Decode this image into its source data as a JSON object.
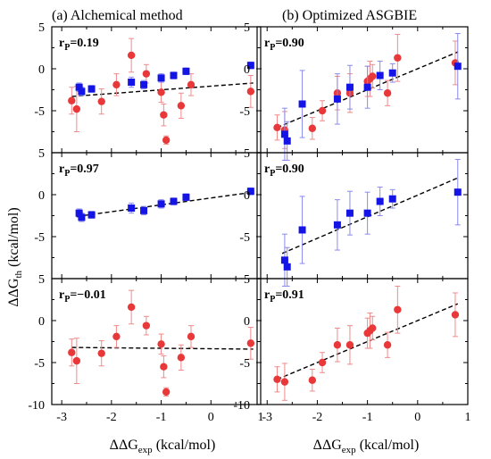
{
  "figure": {
    "col_titles": [
      "(a)   Alchemical method",
      "(b)   Optimized ASGBIE"
    ],
    "ylabel_main": "ΔΔG",
    "ylabel_sub": "th",
    "ylabel_unit": " (kcal/mol)",
    "xlabel_main": "ΔΔG",
    "xlabel_sub": "exp",
    "xlabel_unit": " (kcal/mol)"
  },
  "colors": {
    "blue": "#1414e6",
    "red": "#e8383a",
    "red_err": "#f08a8a",
    "blue_err": "#8a8aee"
  },
  "chart_data": [
    {
      "type": "scatter",
      "row": 0,
      "col": 0,
      "annotation": "r",
      "annotation_sub": "P",
      "annotation_value": "=0.19",
      "xlim": [
        -3.2,
        1.0
      ],
      "ylim": [
        -10,
        5
      ],
      "xticks": [
        "-3",
        "-2",
        "-1",
        "0",
        "1"
      ],
      "yticks": [
        "-10",
        "-5",
        "0",
        "5"
      ],
      "fit": {
        "x": [
          -2.8,
          0.85
        ],
        "y": [
          -3.3,
          -1.7
        ]
      },
      "series": [
        {
          "marker": "circle",
          "color": "red",
          "x": [
            -2.8,
            -2.7,
            -2.2,
            -1.9,
            -1.6,
            -1.3,
            -1.0,
            -0.95,
            -0.9,
            -0.6,
            -0.4,
            0.8
          ],
          "y": [
            -3.8,
            -4.8,
            -3.9,
            -1.9,
            1.6,
            -0.6,
            -2.8,
            -5.5,
            -8.5,
            -4.4,
            -1.9,
            -2.7
          ],
          "err": [
            1.6,
            2.7,
            1.5,
            1.3,
            2.0,
            1.1,
            1.2,
            1.3,
            0.5,
            1.5,
            1.3,
            1.9
          ]
        },
        {
          "marker": "square",
          "color": "blue",
          "x": [
            -2.65,
            -2.6,
            -2.4,
            -1.6,
            -1.35,
            -1.0,
            -0.75,
            -0.5,
            0.8
          ],
          "y": [
            -2.2,
            -2.7,
            -2.4,
            -1.6,
            -1.9,
            -1.1,
            -0.8,
            -0.3,
            0.4
          ],
          "err": [
            0.5,
            0.5,
            0.4,
            0.6,
            0.5,
            0.5,
            0.4,
            0.4,
            0.4
          ]
        }
      ]
    },
    {
      "type": "scatter",
      "row": 0,
      "col": 1,
      "annotation": "r",
      "annotation_sub": "P",
      "annotation_value": "=0.90",
      "xlim": [
        -3.2,
        1.0
      ],
      "ylim": [
        -10,
        5
      ],
      "xticks": [
        "-3",
        "-2",
        "-1",
        "0",
        "1"
      ],
      "yticks": [
        "-10",
        "-5",
        "0",
        "5"
      ],
      "fit": {
        "x": [
          -2.8,
          0.8
        ],
        "y": [
          -7.0,
          2.0
        ]
      },
      "series": [
        {
          "marker": "circle",
          "color": "red",
          "x": [
            -2.8,
            -2.65,
            -2.1,
            -1.9,
            -1.6,
            -1.35,
            -1.0,
            -0.95,
            -0.9,
            -0.6,
            -0.4,
            0.75
          ],
          "y": [
            -7.0,
            -7.3,
            -7.1,
            -5.0,
            -2.9,
            -2.9,
            -1.5,
            -1.2,
            -0.9,
            -2.9,
            1.3,
            0.7
          ],
          "err": [
            1.5,
            2.2,
            1.3,
            1.2,
            2.0,
            2.3,
            1.8,
            2.1,
            1.4,
            1.5,
            2.8,
            2.6
          ]
        },
        {
          "marker": "square",
          "color": "blue",
          "x": [
            -2.65,
            -2.6,
            -2.3,
            -1.6,
            -1.35,
            -1.0,
            -0.75,
            -0.5,
            0.8
          ],
          "y": [
            -7.8,
            -8.6,
            -4.2,
            -3.6,
            -2.2,
            -2.2,
            -0.8,
            -0.5,
            0.3
          ],
          "err": [
            3.1,
            2.3,
            4.0,
            3.0,
            2.6,
            2.5,
            1.7,
            1.1,
            3.9
          ]
        }
      ]
    },
    {
      "type": "scatter",
      "row": 1,
      "col": 0,
      "annotation": "r",
      "annotation_sub": "P",
      "annotation_value": "=0.97",
      "xlim": [
        -3.2,
        1.0
      ],
      "ylim": [
        -10,
        5
      ],
      "xticks": [
        "-3",
        "-2",
        "-1",
        "0",
        "1"
      ],
      "yticks": [
        "-10",
        "-5",
        "0",
        "5"
      ],
      "fit": {
        "x": [
          -2.7,
          0.85
        ],
        "y": [
          -2.6,
          0.3
        ]
      },
      "series": [
        {
          "marker": "square",
          "color": "blue",
          "x": [
            -2.65,
            -2.6,
            -2.4,
            -1.6,
            -1.35,
            -1.0,
            -0.75,
            -0.5,
            0.8
          ],
          "y": [
            -2.2,
            -2.7,
            -2.4,
            -1.6,
            -1.9,
            -1.1,
            -0.8,
            -0.3,
            0.4
          ],
          "err": [
            0.5,
            0.5,
            0.4,
            0.6,
            0.5,
            0.5,
            0.4,
            0.4,
            0.4
          ]
        }
      ]
    },
    {
      "type": "scatter",
      "row": 1,
      "col": 1,
      "annotation": "r",
      "annotation_sub": "P",
      "annotation_value": "=0.90",
      "xlim": [
        -3.2,
        1.0
      ],
      "ylim": [
        -10,
        5
      ],
      "xticks": [
        "-3",
        "-2",
        "-1",
        "0",
        "1"
      ],
      "yticks": [
        "-10",
        "-5",
        "0",
        "5"
      ],
      "fit": {
        "x": [
          -2.7,
          0.8
        ],
        "y": [
          -7.0,
          2.0
        ]
      },
      "series": [
        {
          "marker": "square",
          "color": "blue",
          "x": [
            -2.65,
            -2.6,
            -2.3,
            -1.6,
            -1.35,
            -1.0,
            -0.75,
            -0.5,
            0.8
          ],
          "y": [
            -7.8,
            -8.6,
            -4.2,
            -3.6,
            -2.2,
            -2.2,
            -0.8,
            -0.5,
            0.3
          ],
          "err": [
            3.1,
            2.3,
            4.0,
            3.0,
            2.6,
            2.5,
            1.7,
            1.1,
            3.9
          ]
        }
      ]
    },
    {
      "type": "scatter",
      "row": 2,
      "col": 0,
      "annotation": "r",
      "annotation_sub": "P",
      "annotation_value": "=−0.01",
      "xlim": [
        -3.2,
        1.0
      ],
      "ylim": [
        -10,
        5
      ],
      "xticks": [
        "-3",
        "-2",
        "-1",
        "0",
        "1"
      ],
      "yticks": [
        "-10",
        "-5",
        "0",
        "5"
      ],
      "fit": {
        "x": [
          -2.8,
          0.85
        ],
        "y": [
          -3.2,
          -3.4
        ]
      },
      "series": [
        {
          "marker": "circle",
          "color": "red",
          "x": [
            -2.8,
            -2.7,
            -2.2,
            -1.9,
            -1.6,
            -1.3,
            -1.0,
            -0.95,
            -0.9,
            -0.6,
            -0.4,
            0.8
          ],
          "y": [
            -3.8,
            -4.8,
            -3.9,
            -1.9,
            1.6,
            -0.6,
            -2.8,
            -5.5,
            -8.5,
            -4.4,
            -1.9,
            -2.7
          ],
          "err": [
            1.6,
            2.7,
            1.5,
            1.3,
            2.0,
            1.1,
            1.2,
            1.3,
            0.5,
            1.5,
            1.3,
            1.9
          ]
        }
      ]
    },
    {
      "type": "scatter",
      "row": 2,
      "col": 1,
      "annotation": "r",
      "annotation_sub": "P",
      "annotation_value": "=0.91",
      "xlim": [
        -3.2,
        1.0
      ],
      "ylim": [
        -10,
        5
      ],
      "xticks": [
        "-3",
        "-2",
        "-1",
        "0",
        "1"
      ],
      "yticks": [
        "-10",
        "-5",
        "0",
        "5"
      ],
      "fit": {
        "x": [
          -2.8,
          0.8
        ],
        "y": [
          -7.0,
          2.0
        ]
      },
      "series": [
        {
          "marker": "circle",
          "color": "red",
          "x": [
            -2.8,
            -2.65,
            -2.1,
            -1.9,
            -1.6,
            -1.35,
            -1.0,
            -0.95,
            -0.9,
            -0.6,
            -0.4,
            0.75
          ],
          "y": [
            -7.0,
            -7.3,
            -7.1,
            -5.0,
            -2.9,
            -2.9,
            -1.5,
            -1.2,
            -0.9,
            -2.9,
            1.3,
            0.7
          ],
          "err": [
            1.5,
            2.2,
            1.3,
            1.2,
            2.0,
            2.3,
            1.8,
            2.1,
            1.4,
            1.5,
            2.8,
            2.6
          ]
        }
      ]
    }
  ]
}
